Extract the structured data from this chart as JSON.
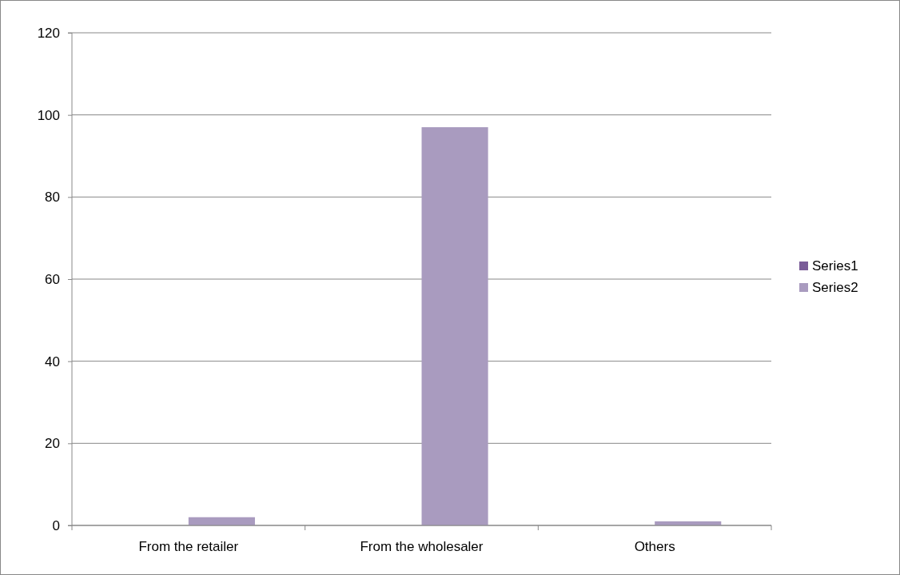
{
  "chart_data": {
    "type": "bar",
    "categories": [
      "From the retailer",
      "From the wholesaler",
      "Others"
    ],
    "series": [
      {
        "name": "Series1",
        "color": "#7a5c98",
        "values": [
          0,
          0,
          0
        ]
      },
      {
        "name": "Series2",
        "color": "#a99bbf",
        "values": [
          2,
          97,
          1
        ]
      }
    ],
    "ylim": [
      0,
      120
    ],
    "yticks": [
      0,
      20,
      40,
      60,
      80,
      100,
      120
    ],
    "grid": "y",
    "legend": "right"
  }
}
